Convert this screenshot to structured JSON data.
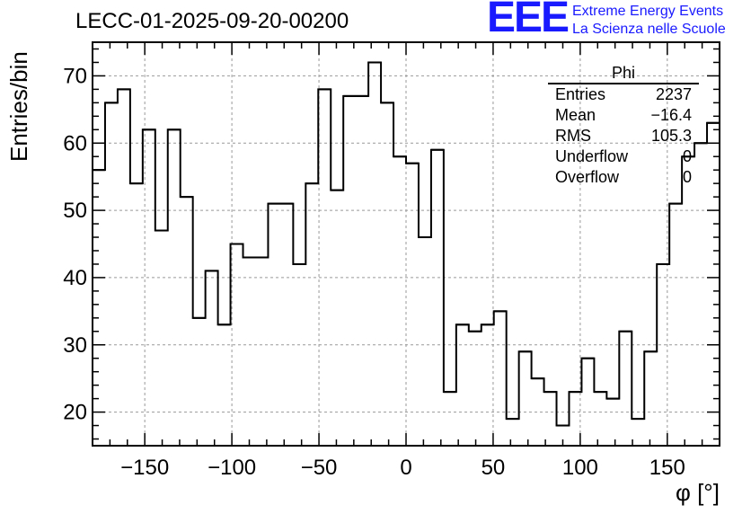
{
  "chart_data": {
    "type": "histogram",
    "title": "LECC-01-2025-09-20-00200",
    "xlabel": "φ [°]",
    "ylabel": "Entries/bin",
    "xlim": [
      -180,
      180
    ],
    "ylim": [
      15,
      75
    ],
    "xticks": [
      -150,
      -100,
      -50,
      0,
      50,
      100,
      150
    ],
    "yticks": [
      20,
      30,
      40,
      50,
      60,
      70
    ],
    "grid": true,
    "bin_edges_start": -180,
    "bin_width": 7.2,
    "values": [
      56,
      66,
      68,
      54,
      62,
      47,
      62,
      52,
      34,
      41,
      33,
      45,
      43,
      43,
      51,
      51,
      42,
      54,
      68,
      53,
      67,
      67,
      72,
      66,
      58,
      57,
      46,
      59,
      23,
      33,
      32,
      33,
      35,
      19,
      29,
      25,
      23,
      18,
      23,
      28,
      23,
      22,
      32,
      19,
      29,
      42,
      51,
      58,
      60,
      63
    ],
    "stats": {
      "name": "Phi",
      "rows": [
        {
          "key": "Entries",
          "value": "2237"
        },
        {
          "key": "Mean",
          "value": "−16.4"
        },
        {
          "key": "RMS",
          "value": "105.3"
        },
        {
          "key": "Underflow",
          "value": "0"
        },
        {
          "key": "Overflow",
          "value": "0"
        }
      ]
    }
  },
  "logo": {
    "mark": "EEE",
    "line1": "Extreme Energy Events",
    "line2": "La Scienza nelle Scuole"
  },
  "colors": {
    "line": "#000000",
    "grid": "#999999",
    "logo": "#1a1aff"
  }
}
